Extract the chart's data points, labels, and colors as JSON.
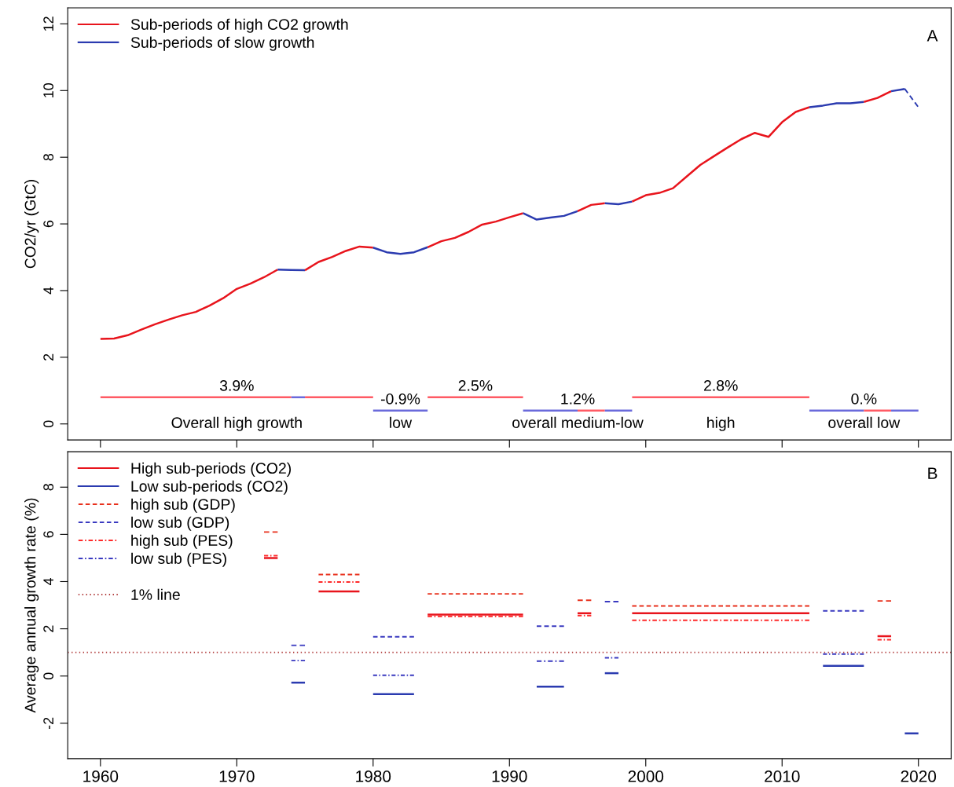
{
  "chart_data": [
    {
      "type": "line",
      "ylabel": "CO2/yr (GtC)",
      "xlim": [
        1957.6,
        2022.4
      ],
      "ylim": [
        -0.48,
        12.48
      ],
      "xticks": [
        1960,
        1970,
        1980,
        1990,
        2000,
        2010,
        2020
      ],
      "yticks": [
        0,
        2,
        4,
        6,
        8,
        10,
        12
      ],
      "tick_labels": "y",
      "grid": false,
      "legend": "top left",
      "series": [
        {
          "name": "Sub-periods of high CO2 growth",
          "color": "#e8141c",
          "line_style": "solid",
          "x": [
            1960,
            1961,
            1962,
            1963,
            1964,
            1965,
            1966,
            1967,
            1968,
            1969,
            1970,
            1971,
            1972,
            1973
          ],
          "values": [
            2.55,
            2.56,
            2.66,
            2.83,
            2.99,
            3.13,
            3.26,
            3.36,
            3.55,
            3.77,
            4.05,
            4.21,
            4.4,
            4.63
          ]
        },
        {
          "name": "Sub-periods of slow growth",
          "color": "#2b3bb0",
          "line_style": "solid",
          "x": [
            1973,
            1974,
            1975
          ],
          "values": [
            4.63,
            4.62,
            4.61
          ]
        },
        {
          "color": "#e8141c",
          "line_style": "solid",
          "x": [
            1975,
            1976,
            1977,
            1978,
            1979,
            1980
          ],
          "values": [
            4.61,
            4.86,
            5.01,
            5.19,
            5.32,
            5.29
          ]
        },
        {
          "color": "#2b3bb0",
          "line_style": "solid",
          "x": [
            1980,
            1981,
            1982,
            1983,
            1984
          ],
          "values": [
            5.29,
            5.15,
            5.1,
            5.15,
            5.3
          ]
        },
        {
          "color": "#e8141c",
          "line_style": "solid",
          "x": [
            1984,
            1985,
            1986,
            1987,
            1988,
            1989,
            1990,
            1991
          ],
          "values": [
            5.3,
            5.48,
            5.58,
            5.76,
            5.98,
            6.07,
            6.2,
            6.32
          ]
        },
        {
          "color": "#2b3bb0",
          "line_style": "solid",
          "x": [
            1991,
            1992,
            1993,
            1994,
            1995
          ],
          "values": [
            6.32,
            6.13,
            6.19,
            6.24,
            6.38
          ]
        },
        {
          "color": "#e8141c",
          "line_style": "solid",
          "x": [
            1995,
            1996,
            1997
          ],
          "values": [
            6.38,
            6.57,
            6.62
          ]
        },
        {
          "color": "#2b3bb0",
          "line_style": "solid",
          "x": [
            1997,
            1998,
            1999
          ],
          "values": [
            6.62,
            6.59,
            6.67
          ]
        },
        {
          "color": "#e8141c",
          "line_style": "solid",
          "x": [
            1999,
            2000,
            2001,
            2002,
            2003,
            2004,
            2005,
            2006,
            2007,
            2008,
            2009,
            2010,
            2011,
            2012
          ],
          "values": [
            6.67,
            6.86,
            6.93,
            7.07,
            7.42,
            7.77,
            8.03,
            8.29,
            8.54,
            8.73,
            8.61,
            9.05,
            9.36,
            9.5
          ]
        },
        {
          "color": "#2b3bb0",
          "line_style": "solid",
          "x": [
            2012,
            2013,
            2014,
            2015,
            2016
          ],
          "values": [
            9.5,
            9.55,
            9.62,
            9.62,
            9.66
          ]
        },
        {
          "color": "#e8141c",
          "line_style": "solid",
          "x": [
            2016,
            2017,
            2018
          ],
          "values": [
            9.66,
            9.78,
            9.98
          ]
        },
        {
          "color": "#2b3bb0",
          "line_style": "solid",
          "x": [
            2018,
            2019
          ],
          "values": [
            9.98,
            10.05
          ]
        },
        {
          "color": "#2b3bb0",
          "line_style": "dashed",
          "x": [
            2019,
            2020
          ],
          "values": [
            10.05,
            9.5
          ]
        },
        {
          "color": "#ff5a64",
          "line_style": "solid",
          "x": [
            1960,
            1974
          ],
          "values": [
            0.8,
            0.8
          ]
        },
        {
          "color": "#6a6adb",
          "line_style": "solid",
          "x": [
            1974,
            1975
          ],
          "values": [
            0.8,
            0.8
          ]
        },
        {
          "color": "#ff5a64",
          "line_style": "solid",
          "x": [
            1975,
            1980
          ],
          "values": [
            0.8,
            0.8
          ]
        },
        {
          "color": "#6a6adb",
          "line_style": "solid",
          "x": [
            1980,
            1984
          ],
          "values": [
            0.4,
            0.4
          ]
        },
        {
          "color": "#ff5a64",
          "line_style": "solid",
          "x": [
            1984,
            1991
          ],
          "values": [
            0.8,
            0.8
          ]
        },
        {
          "color": "#6a6adb",
          "line_style": "solid",
          "x": [
            1991,
            1995
          ],
          "values": [
            0.4,
            0.4
          ]
        },
        {
          "color": "#ff5a64",
          "line_style": "solid",
          "x": [
            1995,
            1997
          ],
          "values": [
            0.4,
            0.4
          ]
        },
        {
          "color": "#6a6adb",
          "line_style": "solid",
          "x": [
            1997,
            1999
          ],
          "values": [
            0.4,
            0.4
          ]
        },
        {
          "color": "#ff5a64",
          "line_style": "solid",
          "x": [
            1999,
            2012
          ],
          "values": [
            0.8,
            0.8
          ]
        },
        {
          "color": "#6a6adb",
          "line_style": "solid",
          "x": [
            2012,
            2016
          ],
          "values": [
            0.4,
            0.4
          ]
        },
        {
          "color": "#ff5a64",
          "line_style": "solid",
          "x": [
            2016,
            2018
          ],
          "values": [
            0.4,
            0.4
          ]
        },
        {
          "color": "#6a6adb",
          "line_style": "solid",
          "x": [
            2018,
            2020
          ],
          "values": [
            0.4,
            0.4
          ]
        }
      ],
      "annotations": [
        "A",
        {
          "text": "3.9%",
          "x": 1970,
          "y": 0.8
        },
        "Overall high growth",
        {
          "text": "-0.9%",
          "x": 1982,
          "y": 0.4
        },
        "low",
        {
          "text": "2.5%",
          "x": 1987.5,
          "y": 0.8
        },
        {
          "text": "1.2%",
          "x": 1995,
          "y": 0.4
        },
        "overall medium-low",
        {
          "text": "2.8%",
          "x": 2005.5,
          "y": 0.8
        },
        "high",
        {
          "text": "0.%",
          "x": 2016,
          "y": 0.4
        },
        "overall low"
      ]
    },
    {
      "type": "line",
      "ylabel": "Average annual growth rate (%)",
      "xlim": [
        1957.6,
        2022.4
      ],
      "ylim": [
        -3.5,
        9.5
      ],
      "xticks": [
        1960,
        1970,
        1980,
        1990,
        2000,
        2010,
        2020
      ],
      "yticks": [
        -2,
        0,
        2,
        4,
        6,
        8
      ],
      "grid": false,
      "legend": "top left",
      "series": [
        {
          "name": "High sub-periods (CO2)",
          "color": "#e8141c",
          "line_style": "solid",
          "x": [
            1972,
            1973
          ],
          "values": [
            5.0,
            5.0
          ]
        },
        {
          "name": "Low sub-periods (CO2)",
          "color": "#2b3bb0",
          "line_style": "solid",
          "x": [
            1974,
            1975
          ],
          "values": [
            -0.28,
            -0.28
          ]
        },
        {
          "name": "high sub (GDP)",
          "color": "#e8301c",
          "line_style": "dashed",
          "x": [
            1972,
            1973
          ],
          "values": [
            6.1,
            6.1
          ]
        },
        {
          "name": "low sub (GDP)",
          "color": "#3a3ac0",
          "line_style": "dashed",
          "x": [
            1974,
            1975
          ],
          "values": [
            1.3,
            1.3
          ]
        },
        {
          "name": "high sub (PES)",
          "color": "#ff2a2a",
          "line_style": "dashdot",
          "x": [
            1972,
            1973
          ],
          "values": [
            5.1,
            5.1
          ]
        },
        {
          "name": "low sub (PES)",
          "color": "#3a3ac0",
          "line_style": "dashdot",
          "x": [
            1974,
            1975
          ],
          "values": [
            0.66,
            0.66
          ]
        },
        {
          "color": "#e8141c",
          "line_style": "solid",
          "x": [
            1976,
            1979
          ],
          "values": [
            3.58,
            3.58
          ]
        },
        {
          "color": "#e8301c",
          "line_style": "dashed",
          "x": [
            1976,
            1979
          ],
          "values": [
            4.3,
            4.3
          ]
        },
        {
          "color": "#ff2a2a",
          "line_style": "dashdot",
          "x": [
            1976,
            1979
          ],
          "values": [
            3.98,
            3.98
          ]
        },
        {
          "color": "#2b3bb0",
          "line_style": "solid",
          "x": [
            1980,
            1983
          ],
          "values": [
            -0.77,
            -0.77
          ]
        },
        {
          "color": "#3a3ac0",
          "line_style": "dashed",
          "x": [
            1980,
            1983
          ],
          "values": [
            1.66,
            1.66
          ]
        },
        {
          "color": "#3a3ac0",
          "line_style": "dashdot",
          "x": [
            1980,
            1983
          ],
          "values": [
            0.03,
            0.03
          ]
        },
        {
          "color": "#e8141c",
          "line_style": "solid",
          "x": [
            1984,
            1991
          ],
          "values": [
            2.6,
            2.6
          ]
        },
        {
          "color": "#e8301c",
          "line_style": "dashed",
          "x": [
            1984,
            1991
          ],
          "values": [
            3.48,
            3.48
          ]
        },
        {
          "color": "#ff2a2a",
          "line_style": "dashdot",
          "x": [
            1984,
            1991
          ],
          "values": [
            2.53,
            2.53
          ]
        },
        {
          "color": "#2b3bb0",
          "line_style": "solid",
          "x": [
            1992,
            1994
          ],
          "values": [
            -0.45,
            -0.45
          ]
        },
        {
          "color": "#3a3ac0",
          "line_style": "dashed",
          "x": [
            1992,
            1994
          ],
          "values": [
            2.11,
            2.11
          ]
        },
        {
          "color": "#3a3ac0",
          "line_style": "dashdot",
          "x": [
            1992,
            1994
          ],
          "values": [
            0.63,
            0.63
          ]
        },
        {
          "color": "#e8141c",
          "line_style": "solid",
          "x": [
            1995,
            1996
          ],
          "values": [
            2.66,
            2.66
          ]
        },
        {
          "color": "#e8301c",
          "line_style": "dashed",
          "x": [
            1995,
            1996
          ],
          "values": [
            3.21,
            3.21
          ]
        },
        {
          "color": "#ff2a2a",
          "line_style": "dashdot",
          "x": [
            1995,
            1996
          ],
          "values": [
            2.56,
            2.56
          ]
        },
        {
          "color": "#2b3bb0",
          "line_style": "solid",
          "x": [
            1997,
            1998
          ],
          "values": [
            0.12,
            0.12
          ]
        },
        {
          "color": "#3a3ac0",
          "line_style": "dashed",
          "x": [
            1997,
            1998
          ],
          "values": [
            3.15,
            3.15
          ]
        },
        {
          "color": "#3a3ac0",
          "line_style": "dashdot",
          "x": [
            1997,
            1998
          ],
          "values": [
            0.77,
            0.77
          ]
        },
        {
          "color": "#e8141c",
          "line_style": "solid",
          "x": [
            1999,
            2012
          ],
          "values": [
            2.66,
            2.66
          ]
        },
        {
          "color": "#e8301c",
          "line_style": "dashed",
          "x": [
            1999,
            2012
          ],
          "values": [
            2.97,
            2.97
          ]
        },
        {
          "color": "#ff2a2a",
          "line_style": "dashdot",
          "x": [
            1999,
            2012
          ],
          "values": [
            2.36,
            2.36
          ]
        },
        {
          "color": "#2b3bb0",
          "line_style": "solid",
          "x": [
            2013,
            2016
          ],
          "values": [
            0.43,
            0.43
          ]
        },
        {
          "color": "#3a3ac0",
          "line_style": "dashed",
          "x": [
            2013,
            2016
          ],
          "values": [
            2.76,
            2.76
          ]
        },
        {
          "color": "#3a3ac0",
          "line_style": "dashdot",
          "x": [
            2013,
            2016
          ],
          "values": [
            0.93,
            0.93
          ]
        },
        {
          "color": "#e8141c",
          "line_style": "solid",
          "x": [
            2017,
            2018
          ],
          "values": [
            1.69,
            1.69
          ]
        },
        {
          "color": "#e8301c",
          "line_style": "dashed",
          "x": [
            2017,
            2018
          ],
          "values": [
            3.18,
            3.18
          ]
        },
        {
          "color": "#ff2a2a",
          "line_style": "dashdot",
          "x": [
            2017,
            2018
          ],
          "values": [
            1.54,
            1.54
          ]
        },
        {
          "color": "#2b3bb0",
          "line_style": "solid",
          "x": [
            2019,
            2020
          ],
          "values": [
            -2.43,
            -2.43
          ]
        }
      ],
      "ref_lines": [
        {
          "axis": "y",
          "value": 1,
          "label": "1% line",
          "color": "#b03a3a",
          "line_style": "dotted"
        }
      ],
      "annotations": [
        "B"
      ]
    }
  ]
}
